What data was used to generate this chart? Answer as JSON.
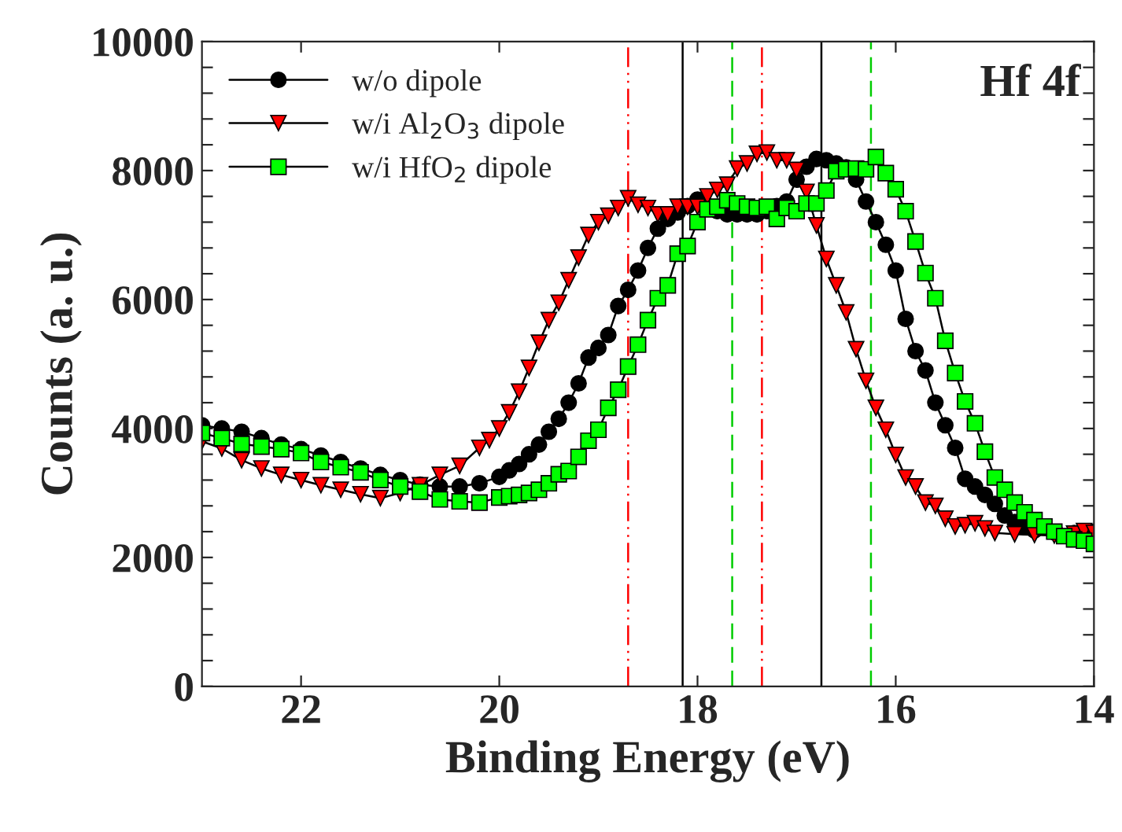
{
  "chart_data": {
    "type": "line",
    "xlabel": "Binding Energy (eV)",
    "ylabel": "Counts (a. u.)",
    "xlim": [
      23,
      14
    ],
    "xticks": [
      22,
      20,
      18,
      16,
      14
    ],
    "ylim": [
      0,
      10000
    ],
    "yticks": [
      0,
      {
        "value": 400,
        "label": null
      },
      {
        "value": 800,
        "label": null
      },
      {
        "value": 1200,
        "label": null
      },
      {
        "value": 1600,
        "label": null
      },
      2000,
      {
        "value": 2400,
        "label": null
      },
      {
        "value": 2800,
        "label": null
      },
      {
        "value": 3200,
        "label": null
      },
      {
        "value": 3600,
        "label": null
      },
      4000,
      {
        "value": 4400,
        "label": null
      },
      {
        "value": 4800,
        "label": null
      },
      {
        "value": 5200,
        "label": null
      },
      {
        "value": 5600,
        "label": null
      },
      6000,
      {
        "value": 6400,
        "label": null
      },
      {
        "value": 6800,
        "label": null
      },
      {
        "value": 7200,
        "label": null
      },
      {
        "value": 7600,
        "label": null
      },
      8000,
      {
        "value": 8400,
        "label": null
      },
      {
        "value": 8800,
        "label": null
      },
      {
        "value": 9200,
        "label": null
      },
      {
        "value": 9600,
        "label": null
      },
      10000
    ],
    "grid": false,
    "legend": "top left",
    "line_style": "solid",
    "annotations": [
      "Hf 4f"
    ],
    "ref_lines": [
      {
        "axis": "x",
        "value": 18.7,
        "color": "#ff0000",
        "line_style": "dashdot"
      },
      {
        "axis": "x",
        "value": 18.15,
        "color": "#000000",
        "line_style": "solid"
      },
      {
        "axis": "x",
        "value": 17.65,
        "color": "#00cc00",
        "line_style": "dashed"
      },
      {
        "axis": "x",
        "value": 17.35,
        "color": "#ff0000",
        "line_style": "dashdot"
      },
      {
        "axis": "x",
        "value": 16.75,
        "color": "#000000",
        "line_style": "solid"
      },
      {
        "axis": "x",
        "value": 16.25,
        "color": "#00cc00",
        "line_style": "dashed"
      }
    ],
    "series": [
      {
        "name": "w/o dipole",
        "color": "#000000",
        "marker": "circle",
        "x": [
          23.0,
          22.8,
          22.6,
          22.4,
          22.2,
          22.0,
          21.8,
          21.6,
          21.4,
          21.2,
          21.0,
          20.8,
          20.6,
          20.4,
          20.2,
          20.0,
          19.9,
          19.8,
          19.7,
          19.6,
          19.5,
          19.4,
          19.3,
          19.2,
          19.1,
          19.0,
          18.9,
          18.8,
          18.7,
          18.6,
          18.5,
          18.4,
          18.3,
          18.2,
          18.1,
          18.0,
          17.9,
          17.8,
          17.7,
          17.6,
          17.5,
          17.4,
          17.3,
          17.2,
          17.1,
          17.0,
          16.9,
          16.8,
          16.7,
          16.6,
          16.5,
          16.4,
          16.3,
          16.2,
          16.1,
          16.0,
          15.9,
          15.8,
          15.7,
          15.6,
          15.5,
          15.4,
          15.3,
          15.2,
          15.1,
          15.0,
          14.9,
          14.8,
          14.7,
          14.6,
          14.4,
          14.2,
          14.0
        ],
        "values": [
          4050,
          4000,
          3950,
          3850,
          3750,
          3680,
          3580,
          3480,
          3380,
          3280,
          3200,
          3130,
          3100,
          3100,
          3150,
          3250,
          3350,
          3450,
          3600,
          3750,
          3950,
          4150,
          4400,
          4700,
          5100,
          5250,
          5450,
          5900,
          6150,
          6450,
          6800,
          7100,
          7250,
          7350,
          7450,
          7550,
          7450,
          7370,
          7320,
          7320,
          7320,
          7320,
          7370,
          7450,
          7520,
          7860,
          8060,
          8180,
          8160,
          8110,
          8050,
          7860,
          7520,
          7200,
          6850,
          6450,
          5700,
          5200,
          4900,
          4400,
          4050,
          3700,
          3220,
          3100,
          2970,
          2830,
          2650,
          2550,
          2470,
          2420,
          2390,
          2380,
          2400
        ]
      },
      {
        "name": "w/i Al$_{2}$O$_{3}$ dipole",
        "color": "#ff0000",
        "marker": "triangle",
        "x": [
          23.0,
          22.8,
          22.6,
          22.4,
          22.2,
          22.0,
          21.8,
          21.6,
          21.4,
          21.2,
          21.0,
          20.8,
          20.6,
          20.4,
          20.2,
          20.1,
          20.0,
          19.9,
          19.8,
          19.7,
          19.6,
          19.5,
          19.4,
          19.3,
          19.2,
          19.1,
          19.0,
          18.9,
          18.8,
          18.7,
          18.6,
          18.5,
          18.4,
          18.3,
          18.2,
          18.1,
          18.0,
          17.9,
          17.8,
          17.7,
          17.6,
          17.5,
          17.4,
          17.3,
          17.2,
          17.1,
          17.0,
          16.9,
          16.8,
          16.7,
          16.6,
          16.5,
          16.4,
          16.3,
          16.2,
          16.1,
          16.0,
          15.9,
          15.8,
          15.7,
          15.6,
          15.5,
          15.4,
          15.3,
          15.2,
          15.1,
          15.0,
          14.8,
          14.6,
          14.4,
          14.2,
          14.1,
          14.0
        ],
        "values": [
          3800,
          3690,
          3510,
          3380,
          3280,
          3200,
          3120,
          3050,
          2980,
          2920,
          3000,
          3120,
          3280,
          3420,
          3700,
          3820,
          4000,
          4250,
          4570,
          4940,
          5330,
          5680,
          5950,
          6300,
          6650,
          7000,
          7200,
          7300,
          7420,
          7570,
          7470,
          7420,
          7320,
          7320,
          7440,
          7440,
          7440,
          7600,
          7700,
          7780,
          8030,
          8110,
          8260,
          8280,
          8160,
          8160,
          8010,
          7670,
          7150,
          6630,
          6220,
          5800,
          5230,
          4740,
          4320,
          3980,
          3590,
          3240,
          3100,
          2850,
          2800,
          2600,
          2480,
          2500,
          2530,
          2450,
          2380,
          2360,
          2350,
          2340,
          2370,
          2410,
          2380
        ]
      },
      {
        "name": "w/i HfO$_{2}$ dipole",
        "color": "#00ff00",
        "marker": "square",
        "x": [
          23.0,
          22.8,
          22.6,
          22.4,
          22.2,
          22.0,
          21.8,
          21.6,
          21.4,
          21.2,
          21.0,
          20.8,
          20.6,
          20.4,
          20.2,
          20.0,
          19.9,
          19.8,
          19.7,
          19.6,
          19.5,
          19.4,
          19.3,
          19.2,
          19.1,
          19.0,
          18.9,
          18.8,
          18.7,
          18.6,
          18.5,
          18.4,
          18.3,
          18.2,
          18.1,
          18.0,
          17.9,
          17.8,
          17.7,
          17.6,
          17.5,
          17.4,
          17.3,
          17.2,
          17.1,
          17.0,
          16.9,
          16.8,
          16.7,
          16.6,
          16.5,
          16.4,
          16.3,
          16.2,
          16.1,
          16.0,
          15.9,
          15.8,
          15.7,
          15.6,
          15.5,
          15.4,
          15.3,
          15.2,
          15.1,
          15.0,
          14.9,
          14.8,
          14.7,
          14.6,
          14.5,
          14.4,
          14.3,
          14.2,
          14.1,
          14.0
        ],
        "values": [
          3930,
          3850,
          3760,
          3720,
          3680,
          3620,
          3480,
          3400,
          3320,
          3200,
          3100,
          3020,
          2900,
          2870,
          2850,
          2930,
          2950,
          2970,
          3000,
          3050,
          3150,
          3290,
          3340,
          3560,
          3810,
          3980,
          4320,
          4600,
          4960,
          5300,
          5680,
          6020,
          6220,
          6710,
          6830,
          7200,
          7400,
          7440,
          7540,
          7490,
          7440,
          7420,
          7440,
          7250,
          7420,
          7370,
          7490,
          7490,
          7690,
          7990,
          8020,
          8030,
          8020,
          8210,
          7960,
          7710,
          7370,
          6900,
          6410,
          6020,
          5360,
          4860,
          4420,
          4080,
          3640,
          3240,
          3050,
          2850,
          2700,
          2580,
          2480,
          2400,
          2330,
          2280,
          2260,
          2210
        ]
      }
    ]
  }
}
